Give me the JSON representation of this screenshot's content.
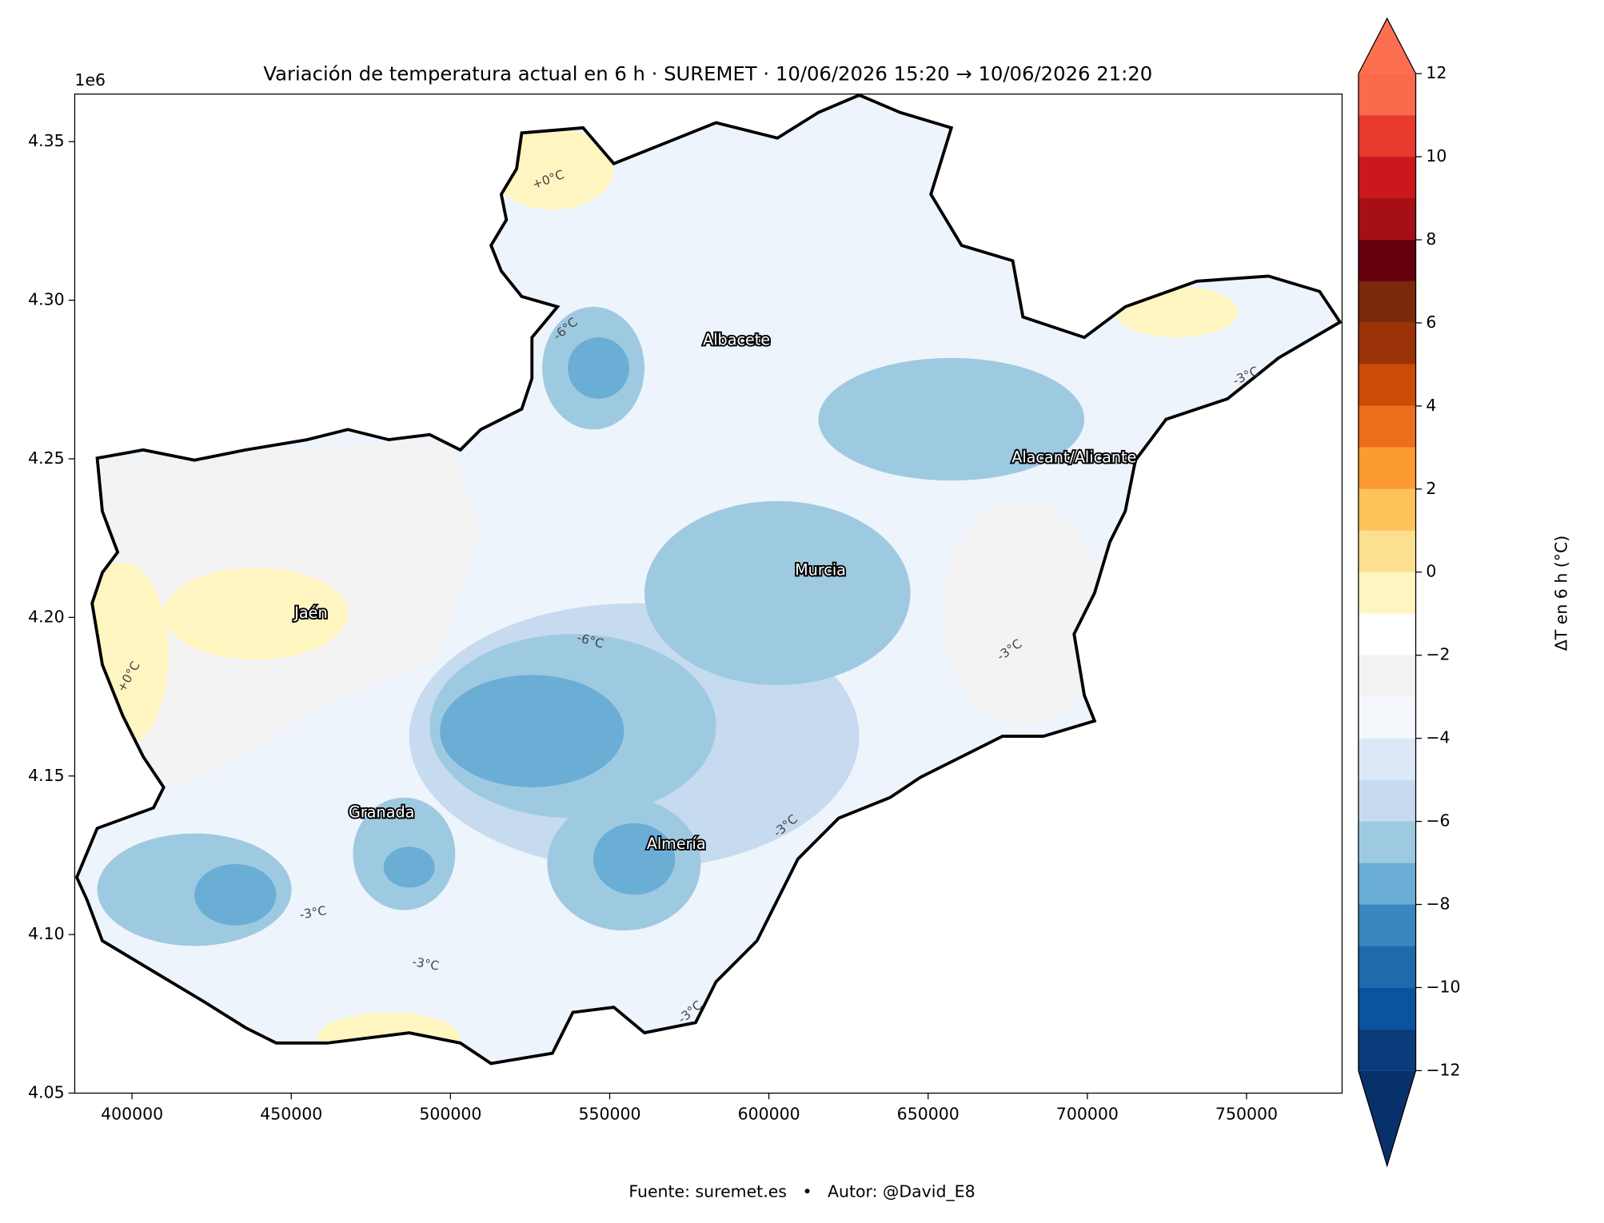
{
  "chart_data": {
    "type": "contour",
    "title": "Variación de temperatura actual en 6 h · SUREMET · 10/06/2026 15:20 → 10/06/2026 21:20",
    "offset_label": "1e6",
    "xlim": [
      382000,
      780000
    ],
    "ylim": [
      4.05,
      4.365
    ],
    "xticks": [
      400000,
      450000,
      500000,
      550000,
      600000,
      650000,
      700000,
      750000
    ],
    "yticks": [
      {
        "value": 4.05,
        "label": "4.05"
      },
      {
        "value": 4.1,
        "label": "4.10"
      },
      {
        "value": 4.15,
        "label": "4.15"
      },
      {
        "value": 4.2,
        "label": "4.20"
      },
      {
        "value": 4.25,
        "label": "4.25"
      },
      {
        "value": 4.3,
        "label": "4.30"
      },
      {
        "value": 4.35,
        "label": "4.35"
      }
    ],
    "colorbar": {
      "label": "ΔT en 6 h (°C)",
      "levels": [
        -12,
        -11,
        -10,
        -9,
        -8,
        -7,
        -6,
        -5,
        -4,
        -3,
        -2,
        -1,
        0,
        1,
        2,
        3,
        4,
        5,
        6,
        7,
        8,
        9,
        10,
        11,
        12
      ],
      "colors": [
        "#0a3b7a",
        "#0a539e",
        "#1f6aad",
        "#3a87c0",
        "#6aaed6",
        "#9ecae1",
        "#c6dbef",
        "#dce8f5",
        "#f4f8fd",
        "#f3f3f3",
        "#ffffff",
        "#fff5c0",
        "#fde08f",
        "#fdc25a",
        "#fc9a32",
        "#ec6e1c",
        "#cc4c05",
        "#9c3208",
        "#7a2a0a",
        "#67000d",
        "#a50f15",
        "#cb181d",
        "#e83a2d",
        "#fb6a4a"
      ],
      "under_color": "#08306b",
      "over_color": "#fc7050",
      "ticks": [
        {
          "value": -12,
          "label": "−12"
        },
        {
          "value": -10,
          "label": "−10"
        },
        {
          "value": -8,
          "label": "−8"
        },
        {
          "value": -6,
          "label": "−6"
        },
        {
          "value": -4,
          "label": "−4"
        },
        {
          "value": -2,
          "label": "−2"
        },
        0,
        2,
        4,
        6,
        8,
        10,
        12
      ]
    },
    "places": [
      "Albacete",
      "Alacant/Alicante",
      "Murcia",
      "Jaén",
      "Granada",
      "Almería"
    ],
    "contour_labels": [
      "+0°C",
      "-6°C",
      "-3°C",
      "+0°C",
      "-3°C",
      "-6°C",
      "-3°C",
      "-3°C",
      "-3°C",
      "-3°C"
    ],
    "footer": "Fuente: suremet.es   •   Autor: @David_E8"
  }
}
